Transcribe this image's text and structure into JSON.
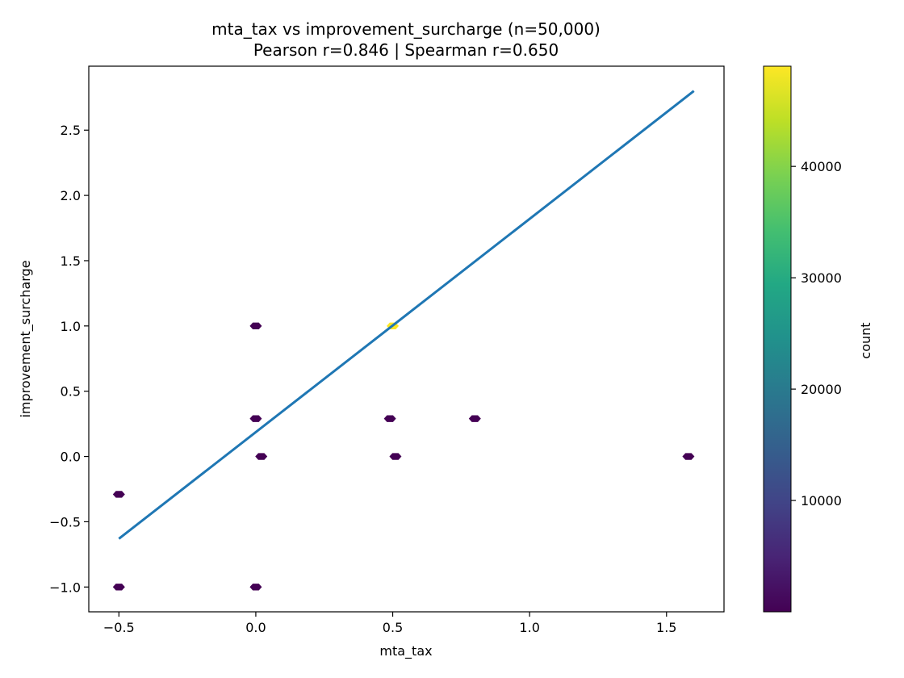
{
  "chart_data": {
    "type": "scatter",
    "title": "mta_tax vs improvement_surcharge (n=50,000)",
    "subtitle": "Pearson r=0.846 | Spearman r=0.650",
    "xlabel": "mta_tax",
    "ylabel": "improvement_surcharge",
    "xlim": [
      -0.61,
      1.71
    ],
    "ylim": [
      -1.19,
      2.99
    ],
    "xticks": [
      -0.5,
      0.0,
      0.5,
      1.0,
      1.5
    ],
    "xtick_labels": [
      "−0.5",
      "0.0",
      "0.5",
      "1.0",
      "1.5"
    ],
    "yticks": [
      -1.0,
      -0.5,
      0.0,
      0.5,
      1.0,
      1.5,
      2.0,
      2.5
    ],
    "ytick_labels": [
      "−1.0",
      "−0.5",
      "0.0",
      "0.5",
      "1.0",
      "1.5",
      "2.0",
      "2.5"
    ],
    "grid": false,
    "hexbins": [
      {
        "x": -0.5,
        "y": -1.0,
        "count": 1
      },
      {
        "x": -0.5,
        "y": -0.29,
        "count": 1
      },
      {
        "x": 0.0,
        "y": -1.0,
        "count": 1
      },
      {
        "x": 0.0,
        "y": 0.29,
        "count": 1
      },
      {
        "x": 0.0,
        "y": 1.0,
        "count": 1
      },
      {
        "x": 0.02,
        "y": 0.0,
        "count": 1
      },
      {
        "x": 0.49,
        "y": 0.29,
        "count": 1
      },
      {
        "x": 0.51,
        "y": 0.0,
        "count": 1
      },
      {
        "x": 0.5,
        "y": 1.0,
        "count": 49000
      },
      {
        "x": 0.8,
        "y": 0.29,
        "count": 1
      },
      {
        "x": 1.58,
        "y": 0.0,
        "count": 1
      }
    ],
    "fit_line": {
      "x": [
        -0.5,
        1.6
      ],
      "y": [
        -0.63,
        2.8
      ],
      "color": "#1f77b4"
    },
    "colorbar": {
      "label": "count",
      "cmap": "viridis",
      "min": 1,
      "max": 49000,
      "ticks": [
        10000,
        20000,
        30000,
        40000
      ],
      "tick_labels": [
        "10000",
        "20000",
        "30000",
        "40000"
      ]
    }
  }
}
